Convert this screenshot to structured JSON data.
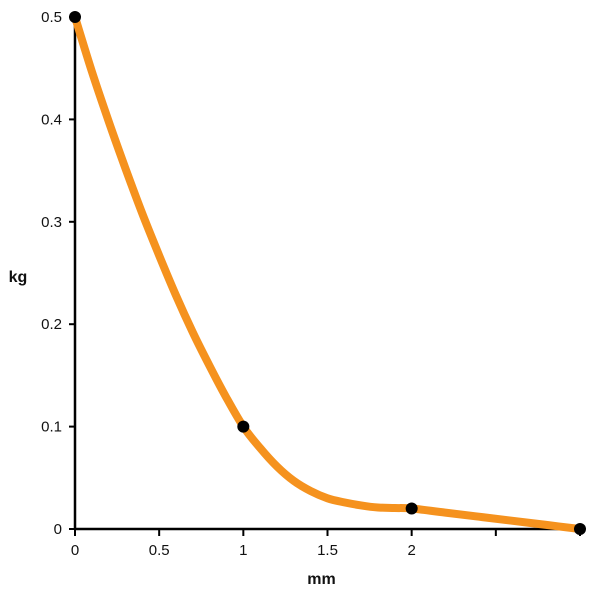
{
  "chart_data": {
    "type": "line",
    "title": "",
    "xlabel": "mm",
    "ylabel": "kg",
    "xlim": [
      0,
      3
    ],
    "ylim": [
      0,
      0.5
    ],
    "x_ticks": [
      0,
      0.5,
      1,
      1.5,
      2,
      2.5,
      3
    ],
    "x_tick_labels": [
      "0",
      "0.5",
      "1",
      "1.5",
      "2",
      "",
      ""
    ],
    "y_ticks": [
      0,
      0.1,
      0.2,
      0.3,
      0.4,
      0.5
    ],
    "y_tick_labels": [
      "0",
      "0.1",
      "0.2",
      "0.3",
      "0.4",
      "0.5"
    ],
    "grid": false,
    "legend": "none",
    "line_color": "#f5921e",
    "marker_color": "#000000",
    "axis_color": "#000000",
    "curve": {
      "x": [
        0,
        0.1,
        0.2,
        0.3,
        0.4,
        0.5,
        0.6,
        0.7,
        0.8,
        0.9,
        1.0,
        1.1,
        1.2,
        1.3,
        1.4,
        1.5,
        1.6,
        1.7,
        1.8,
        1.9,
        2.0,
        2.2,
        2.4,
        2.6,
        2.8,
        3.0
      ],
      "y": [
        0.5,
        0.447,
        0.398,
        0.352,
        0.308,
        0.267,
        0.228,
        0.192,
        0.159,
        0.128,
        0.1,
        0.079,
        0.061,
        0.047,
        0.037,
        0.03,
        0.026,
        0.023,
        0.021,
        0.0205,
        0.02,
        0.016,
        0.012,
        0.008,
        0.004,
        0
      ]
    },
    "points": {
      "x": [
        0,
        1,
        2,
        3
      ],
      "y": [
        0.5,
        0.1,
        0.02,
        0
      ]
    }
  }
}
